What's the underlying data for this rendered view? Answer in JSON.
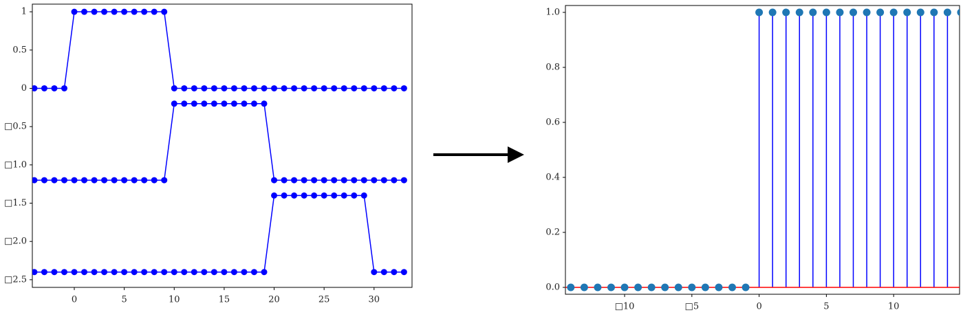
{
  "chart_data": [
    {
      "type": "line",
      "x": [
        -4,
        -3,
        -2,
        -1,
        0,
        1,
        2,
        3,
        4,
        5,
        6,
        7,
        8,
        9,
        10,
        11,
        12,
        13,
        14,
        15,
        16,
        17,
        18,
        19,
        20,
        21,
        22,
        23,
        24,
        25,
        26,
        27,
        28,
        29,
        30,
        31,
        32,
        33
      ],
      "series": [
        {
          "color": "blue",
          "values": [
            0,
            0,
            0,
            0,
            1,
            1,
            1,
            1,
            1,
            1,
            1,
            1,
            1,
            1,
            0,
            0,
            0,
            0,
            0,
            0,
            0,
            0,
            0,
            0,
            0,
            0,
            0,
            0,
            0,
            0,
            0,
            0,
            0,
            0,
            0,
            0,
            0,
            0
          ]
        },
        {
          "color": "blue",
          "values": [
            -1.2,
            -1.2,
            -1.2,
            -1.2,
            -1.2,
            -1.2,
            -1.2,
            -1.2,
            -1.2,
            -1.2,
            -1.2,
            -1.2,
            -1.2,
            -1.2,
            -0.2,
            -0.2,
            -0.2,
            -0.2,
            -0.2,
            -0.2,
            -0.2,
            -0.2,
            -0.2,
            -0.2,
            -1.2,
            -1.2,
            -1.2,
            -1.2,
            -1.2,
            -1.2,
            -1.2,
            -1.2,
            -1.2,
            -1.2,
            -1.2,
            -1.2,
            -1.2,
            -1.2
          ]
        },
        {
          "color": "blue",
          "values": [
            -2.4,
            -2.4,
            -2.4,
            -2.4,
            -2.4,
            -2.4,
            -2.4,
            -2.4,
            -2.4,
            -2.4,
            -2.4,
            -2.4,
            -2.4,
            -2.4,
            -2.4,
            -2.4,
            -2.4,
            -2.4,
            -2.4,
            -2.4,
            -2.4,
            -2.4,
            -2.4,
            -2.4,
            -1.4,
            -1.4,
            -1.4,
            -1.4,
            -1.4,
            -1.4,
            -1.4,
            -1.4,
            -1.4,
            -1.4,
            -2.4,
            -2.4,
            -2.4,
            -2.4
          ]
        }
      ],
      "xlim": [
        -4.2,
        33.8
      ],
      "ylim": [
        -2.6,
        1.1
      ],
      "xticks": [
        0,
        5,
        10,
        15,
        20,
        25,
        30
      ],
      "yticks": [
        1.0,
        0.5,
        0.0,
        {
          "value": -0.5,
          "label": "□0.5"
        },
        {
          "value": -1.0,
          "label": "□1.0"
        },
        {
          "value": -1.5,
          "label": "□1.5"
        },
        {
          "value": -2.0,
          "label": "□2.0"
        },
        {
          "value": -2.5,
          "label": "□2.5"
        }
      ]
    },
    {
      "type": "stem",
      "x": [
        -14,
        -13,
        -12,
        -11,
        -10,
        -9,
        -8,
        -7,
        -6,
        -5,
        -4,
        -3,
        -2,
        -1,
        0,
        1,
        2,
        3,
        4,
        5,
        6,
        7,
        8,
        9,
        10,
        11,
        12,
        13,
        14,
        15
      ],
      "values": [
        0,
        0,
        0,
        0,
        0,
        0,
        0,
        0,
        0,
        0,
        0,
        0,
        0,
        0,
        1,
        1,
        1,
        1,
        1,
        1,
        1,
        1,
        1,
        1,
        1,
        1,
        1,
        1,
        1,
        1
      ],
      "marker_color": "#1f77b4",
      "stem_color": "blue",
      "baseline_color": "red",
      "xlim": [
        -14.4,
        14.9
      ],
      "ylim": [
        -0.025,
        1.025
      ],
      "xticks": [
        {
          "value": -10,
          "label": "□10"
        },
        {
          "value": -5,
          "label": "□5"
        },
        0,
        5,
        10
      ],
      "yticks": [
        {
          "value": 0,
          "label": "0.0"
        },
        0.2,
        0.4,
        0.6,
        0.8,
        {
          "value": 1,
          "label": "1.0"
        }
      ]
    }
  ]
}
